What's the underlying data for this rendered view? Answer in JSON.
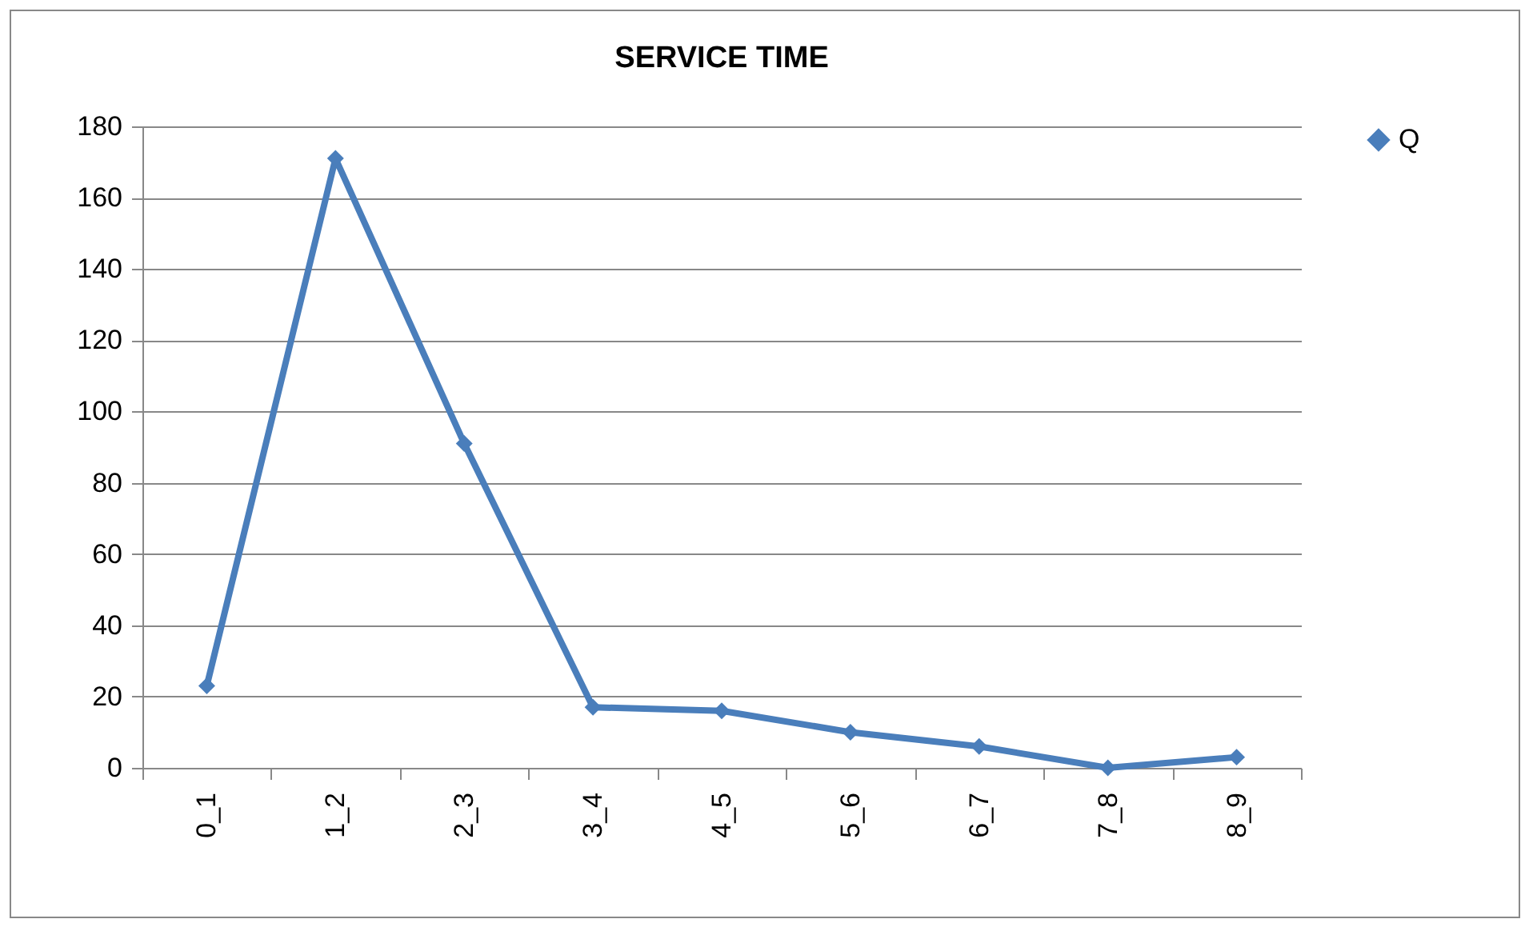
{
  "chart_data": {
    "type": "line",
    "title": "SERVICE TIME",
    "categories": [
      "0_1",
      "1_2",
      "2_3",
      "3_4",
      "4_5",
      "5_6",
      "6_7",
      "7_8",
      "8_9"
    ],
    "series": [
      {
        "name": "Q",
        "color": "#4a7ebb",
        "values": [
          23,
          171,
          91,
          17,
          16,
          10,
          6,
          0,
          3
        ]
      }
    ],
    "ylim": [
      0,
      180
    ],
    "yticks": [
      0,
      20,
      40,
      60,
      80,
      100,
      120,
      140,
      160,
      180
    ],
    "grid": "y",
    "legend": "right",
    "marker": "diamond",
    "line_style": "solid"
  }
}
